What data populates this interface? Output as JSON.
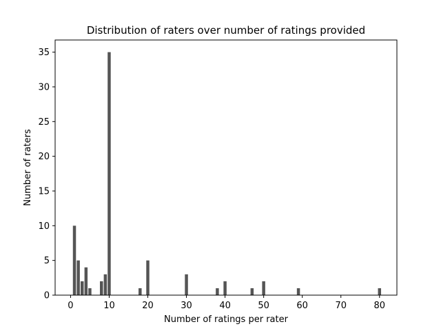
{
  "chart_data": {
    "type": "bar",
    "title": "Distribution of raters over number of ratings provided",
    "xlabel": "Number of ratings per rater",
    "ylabel": "Number of raters",
    "xlim": [
      -4,
      84.5
    ],
    "ylim": [
      0,
      36.75
    ],
    "xticks": [
      0,
      10,
      20,
      30,
      40,
      50,
      60,
      70,
      80
    ],
    "yticks": [
      0,
      5,
      10,
      15,
      20,
      25,
      30,
      35
    ],
    "bar_color": "#555555",
    "grid": false,
    "x": [
      1,
      2,
      3,
      4,
      5,
      8,
      9,
      10,
      18,
      20,
      30,
      38,
      40,
      47,
      50,
      59,
      80
    ],
    "values": [
      10,
      5,
      2,
      4,
      1,
      2,
      3,
      35,
      1,
      5,
      3,
      1,
      2,
      1,
      2,
      1,
      1
    ]
  }
}
